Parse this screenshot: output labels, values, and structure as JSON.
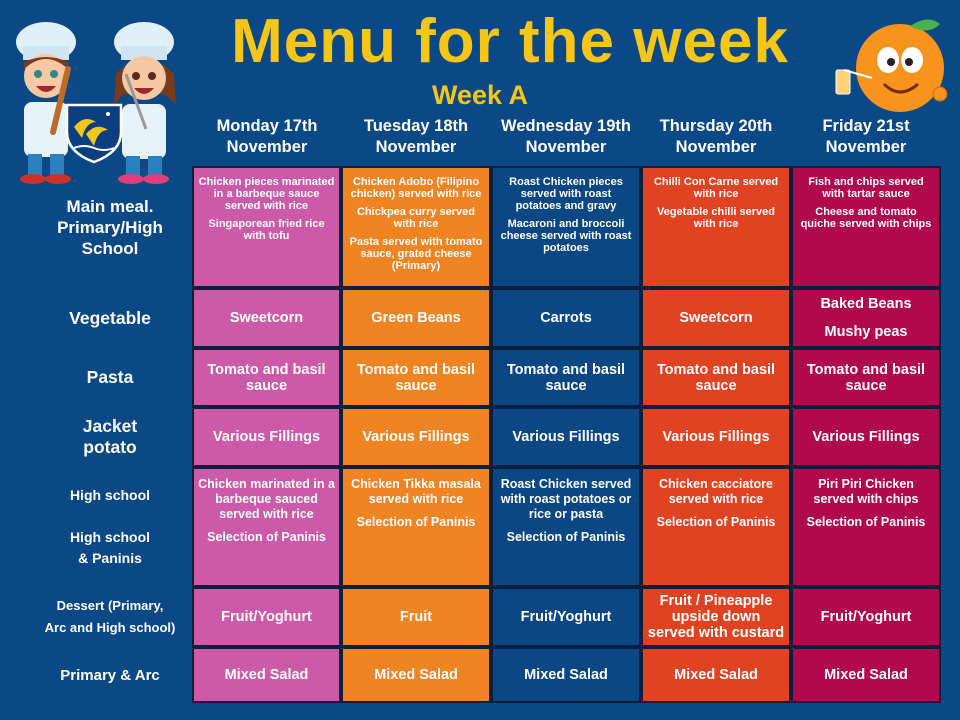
{
  "header": {
    "title": "Menu for the week",
    "subtitle": "Week A"
  },
  "days": [
    [
      "Monday 17th",
      "November"
    ],
    [
      "Tuesday 18th",
      "November"
    ],
    [
      "Wednesday 19th",
      "November"
    ],
    [
      "Thursday 20th",
      "November"
    ],
    [
      "Friday 21st",
      "November"
    ]
  ],
  "rows": [
    {
      "label": [
        "Main meal.",
        "Primary/High",
        "School"
      ],
      "cells": [
        [
          "Chicken pieces marinated in a barbeque sauce served with rice",
          "Singaporean fried rice with tofu"
        ],
        [
          "Chicken Adobo (Filipino chicken) served with rice",
          "Chickpea curry served with rice",
          "Pasta served with tomato sauce, grated cheese (Primary)"
        ],
        [
          "Roast Chicken pieces served with roast potatoes and gravy",
          "Macaroni and broccoli cheese served with roast potatoes"
        ],
        [
          "Chilli Con Carne served with rice",
          "Vegetable chilli served with rice"
        ],
        [
          "Fish and chips served with tartar sauce",
          "Cheese and tomato quiche served with chips"
        ]
      ]
    },
    {
      "label": [
        "Vegetable"
      ],
      "cells": [
        [
          "Sweetcorn"
        ],
        [
          "Green Beans"
        ],
        [
          "Carrots"
        ],
        [
          "Sweetcorn"
        ],
        [
          "Baked Beans",
          "Mushy peas"
        ]
      ]
    },
    {
      "label": [
        "Pasta"
      ],
      "cells": [
        [
          "Tomato and basil sauce"
        ],
        [
          "Tomato and basil sauce"
        ],
        [
          "Tomato and basil sauce"
        ],
        [
          "Tomato and basil sauce"
        ],
        [
          "Tomato and basil sauce"
        ]
      ]
    },
    {
      "label": [
        "Jacket",
        "potato"
      ],
      "cells": [
        [
          "Various Fillings"
        ],
        [
          "Various Fillings"
        ],
        [
          "Various Fillings"
        ],
        [
          "Various Fillings"
        ],
        [
          "Various Fillings"
        ]
      ]
    },
    {
      "label": [
        "High school",
        "",
        "High school",
        "& Paninis"
      ],
      "cells": [
        [
          "Chicken marinated in a barbeque sauced served with rice",
          "Selection of Paninis"
        ],
        [
          "Chicken Tikka masala served with rice",
          "Selection of Paninis"
        ],
        [
          "Roast Chicken served with roast potatoes or rice or pasta",
          "Selection of Paninis"
        ],
        [
          "Chicken cacciatore served with rice",
          "Selection of Paninis"
        ],
        [
          "Piri Piri Chicken served with chips",
          "Selection of Paninis"
        ]
      ]
    },
    {
      "label": [
        "Dessert (Primary,",
        "Arc and High school)"
      ],
      "cells": [
        [
          "Fruit/Yoghurt"
        ],
        [
          "Fruit"
        ],
        [
          "Fruit/Yoghurt"
        ],
        [
          "Fruit / Pineapple upside down served with custard"
        ],
        [
          "Fruit/Yoghurt"
        ]
      ]
    },
    {
      "label": [
        "Primary & Arc"
      ],
      "cells": [
        [
          "Mixed Salad"
        ],
        [
          "Mixed Salad"
        ],
        [
          "Mixed Salad"
        ],
        [
          "Mixed Salad"
        ],
        [
          "Mixed Salad"
        ]
      ]
    }
  ],
  "colors": {
    "background": "#0b4886",
    "title": "#f5c518",
    "columns": [
      "#cc5aa8",
      "#f08423",
      "#0b4785",
      "#e04322",
      "#b0094d"
    ]
  },
  "icons": [
    "chef-boy-illustration",
    "chef-girl-illustration",
    "school-crest-dolphins",
    "orange-mascot"
  ]
}
